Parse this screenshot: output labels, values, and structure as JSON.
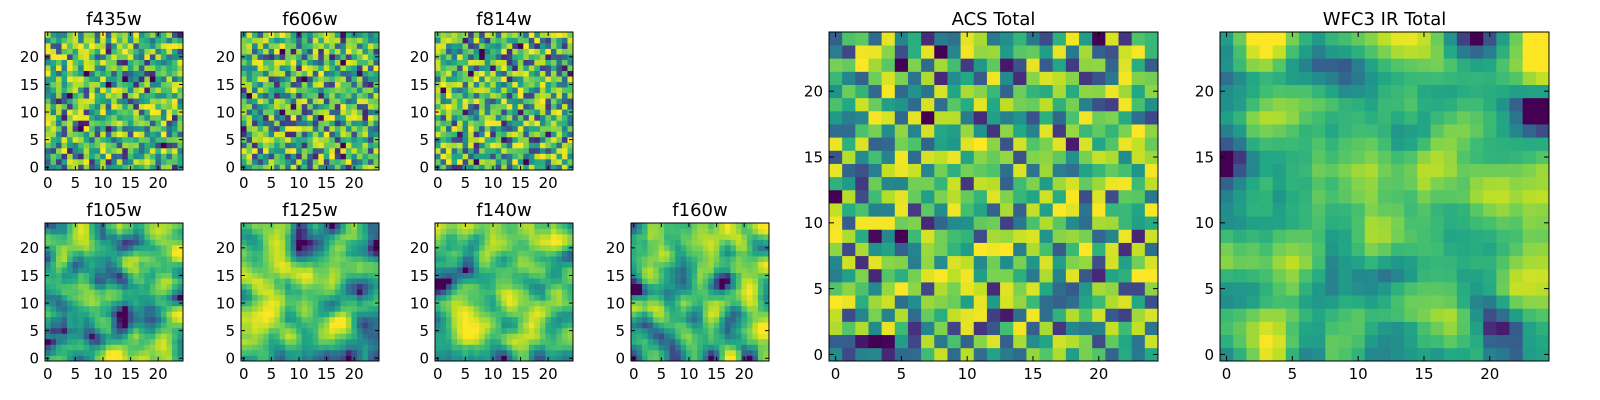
{
  "chart_data": [
    {
      "type": "heatmap",
      "title": "f435w",
      "colormap": "viridis",
      "grid": false,
      "grid_size": 25,
      "xlim": [
        -0.5,
        24.5
      ],
      "ylim": [
        -0.5,
        24.5
      ],
      "xticks": [
        0,
        5,
        10,
        15,
        20
      ],
      "yticks": [
        0,
        5,
        10,
        15,
        20
      ],
      "texture": "fine",
      "seed": 11
    },
    {
      "type": "heatmap",
      "title": "f606w",
      "colormap": "viridis",
      "grid": false,
      "grid_size": 25,
      "xlim": [
        -0.5,
        24.5
      ],
      "ylim": [
        -0.5,
        24.5
      ],
      "xticks": [
        0,
        5,
        10,
        15,
        20
      ],
      "yticks": [
        0,
        5,
        10,
        15,
        20
      ],
      "texture": "fine",
      "seed": 23
    },
    {
      "type": "heatmap",
      "title": "f814w",
      "colormap": "viridis",
      "grid": false,
      "grid_size": 25,
      "xlim": [
        -0.5,
        24.5
      ],
      "ylim": [
        -0.5,
        24.5
      ],
      "xticks": [
        0,
        5,
        10,
        15,
        20
      ],
      "yticks": [
        0,
        5,
        10,
        15,
        20
      ],
      "texture": "fine",
      "seed": 37
    },
    {
      "type": "heatmap",
      "title": "f105w",
      "colormap": "viridis",
      "grid": false,
      "grid_size": 25,
      "xlim": [
        -0.5,
        24.5
      ],
      "ylim": [
        -0.5,
        24.5
      ],
      "xticks": [
        0,
        5,
        10,
        15,
        20
      ],
      "yticks": [
        0,
        5,
        10,
        15,
        20
      ],
      "texture": "smooth",
      "seed": 41
    },
    {
      "type": "heatmap",
      "title": "f125w",
      "colormap": "viridis",
      "grid": false,
      "grid_size": 25,
      "xlim": [
        -0.5,
        24.5
      ],
      "ylim": [
        -0.5,
        24.5
      ],
      "xticks": [
        0,
        5,
        10,
        15,
        20
      ],
      "yticks": [
        0,
        5,
        10,
        15,
        20
      ],
      "texture": "smooth",
      "seed": 53
    },
    {
      "type": "heatmap",
      "title": "f140w",
      "colormap": "viridis",
      "grid": false,
      "grid_size": 25,
      "xlim": [
        -0.5,
        24.5
      ],
      "ylim": [
        -0.5,
        24.5
      ],
      "xticks": [
        0,
        5,
        10,
        15,
        20
      ],
      "yticks": [
        0,
        5,
        10,
        15,
        20
      ],
      "texture": "smooth",
      "seed": 67
    },
    {
      "type": "heatmap",
      "title": "f160w",
      "colormap": "viridis",
      "grid": false,
      "grid_size": 25,
      "xlim": [
        -0.5,
        24.5
      ],
      "ylim": [
        -0.5,
        24.5
      ],
      "xticks": [
        0,
        5,
        10,
        15,
        20
      ],
      "yticks": [
        0,
        5,
        10,
        15,
        20
      ],
      "texture": "smooth",
      "seed": 79
    },
    {
      "type": "heatmap",
      "title": "ACS Total",
      "colormap": "viridis",
      "grid": false,
      "grid_size": 25,
      "xlim": [
        -0.5,
        24.5
      ],
      "ylim": [
        -0.5,
        24.5
      ],
      "xticks": [
        0,
        5,
        10,
        15,
        20
      ],
      "yticks": [
        0,
        5,
        10,
        15,
        20
      ],
      "texture": "fine",
      "seed": 97
    },
    {
      "type": "heatmap",
      "title": "WFC3 IR Total",
      "colormap": "viridis",
      "grid": false,
      "grid_size": 25,
      "xlim": [
        -0.5,
        24.5
      ],
      "ylim": [
        -0.5,
        24.5
      ],
      "xticks": [
        0,
        5,
        10,
        15,
        20
      ],
      "yticks": [
        0,
        5,
        10,
        15,
        20
      ],
      "texture": "smooth",
      "seed": 113
    }
  ]
}
